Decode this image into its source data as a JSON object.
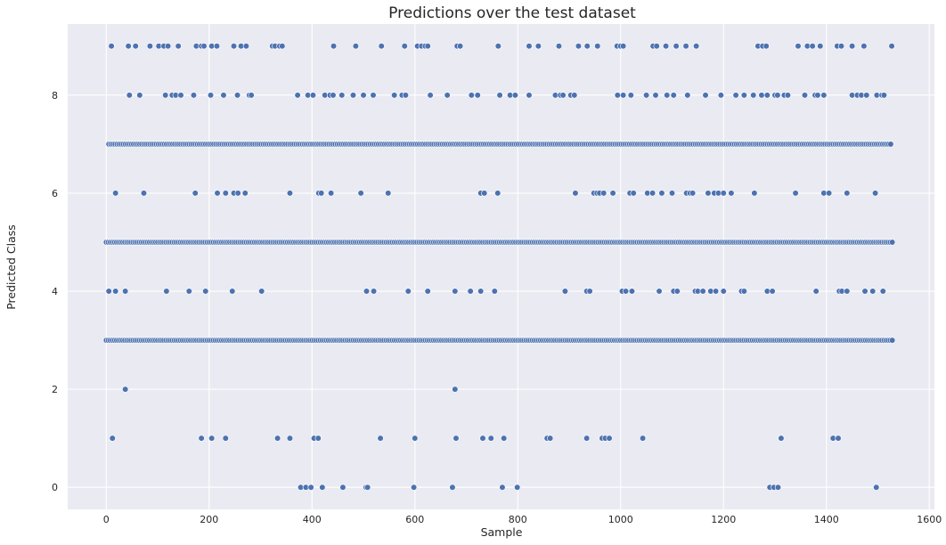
{
  "chart_data": {
    "type": "scatter",
    "title": "Predictions over the test dataset",
    "xlabel": "Sample",
    "ylabel": "Predicted Class",
    "xlim": [
      -75,
      1610
    ],
    "ylim": [
      -0.45,
      9.45
    ],
    "x_ticks": [
      0,
      200,
      400,
      600,
      800,
      1000,
      1200,
      1400,
      1600
    ],
    "y_ticks": [
      0,
      2,
      4,
      6,
      8
    ],
    "grid": true,
    "legend": "none",
    "colors": {
      "plot_background": "#eaeaf2",
      "grid": "#ffffff",
      "point": "#4c72b0",
      "point_edge": "#ffffff"
    },
    "series": [
      {
        "x": [
          378,
          388,
          398,
          420,
          460,
          505,
          508,
          598,
          673,
          770,
          799,
          1290,
          1298,
          1306,
          1497,
          12,
          185,
          205,
          232,
          333,
          357,
          404,
          412,
          533,
          600,
          680,
          732,
          748,
          773,
          857,
          863,
          934,
          964,
          970,
          978,
          1043,
          1312,
          1413,
          1423,
          37,
          678,
          5,
          18,
          37,
          117,
          161,
          193,
          245,
          302,
          506,
          520,
          587,
          625,
          678,
          708,
          728,
          755,
          892,
          934,
          940,
          1003,
          1010,
          1022,
          1075,
          1103,
          1110,
          1145,
          1150,
          1160,
          1175,
          1185,
          1200,
          1235,
          1240,
          1285,
          1295,
          1380,
          1425,
          1430,
          1440,
          1475,
          1490,
          1510,
          18,
          73,
          173,
          216,
          232,
          248,
          256,
          270,
          357,
          413,
          418,
          437,
          495,
          548,
          728,
          735,
          761,
          912,
          948,
          954,
          959,
          967,
          985,
          1018,
          1025,
          1052,
          1062,
          1080,
          1100,
          1128,
          1135,
          1140,
          1170,
          1182,
          1190,
          1200,
          1215,
          1260,
          1340,
          1395,
          1405,
          1440,
          1495,
          45,
          65,
          115,
          128,
          135,
          145,
          170,
          203,
          228,
          255,
          278,
          282,
          372,
          392,
          402,
          425,
          435,
          441,
          458,
          480,
          500,
          519,
          560,
          575,
          582,
          630,
          663,
          710,
          722,
          765,
          785,
          795,
          822,
          873,
          883,
          888,
          903,
          910,
          994,
          1005,
          1020,
          1050,
          1068,
          1090,
          1103,
          1130,
          1165,
          1195,
          1224,
          1240,
          1258,
          1274,
          1285,
          1300,
          1305,
          1318,
          1325,
          1358,
          1378,
          1383,
          1395,
          1450,
          1460,
          1468,
          1478,
          1498,
          1508,
          1512,
          10,
          43,
          57,
          85,
          102,
          112,
          120,
          140,
          175,
          185,
          190,
          205,
          215,
          248,
          262,
          272,
          323,
          328,
          337,
          342,
          442,
          485,
          535,
          580,
          605,
          613,
          620,
          625,
          682,
          688,
          762,
          822,
          840,
          880,
          918,
          935,
          955,
          993,
          1000,
          1005,
          1063,
          1070,
          1088,
          1108,
          1127,
          1147,
          1267,
          1276,
          1283,
          1345,
          1363,
          1373,
          1388,
          1421,
          1429,
          1450,
          1473,
          1527
        ],
        "y": [
          0,
          0,
          0,
          0,
          0,
          0,
          0,
          0,
          0,
          0,
          0,
          0,
          0,
          0,
          0,
          1,
          1,
          1,
          1,
          1,
          1,
          1,
          1,
          1,
          1,
          1,
          1,
          1,
          1,
          1,
          1,
          1,
          1,
          1,
          1,
          1,
          1,
          1,
          1,
          2,
          2,
          4,
          4,
          4,
          4,
          4,
          4,
          4,
          4,
          4,
          4,
          4,
          4,
          4,
          4,
          4,
          4,
          4,
          4,
          4,
          4,
          4,
          4,
          4,
          4,
          4,
          4,
          4,
          4,
          4,
          4,
          4,
          4,
          4,
          4,
          4,
          4,
          4,
          4,
          4,
          4,
          4,
          4,
          6,
          6,
          6,
          6,
          6,
          6,
          6,
          6,
          6,
          6,
          6,
          6,
          6,
          6,
          6,
          6,
          6,
          6,
          6,
          6,
          6,
          6,
          6,
          6,
          6,
          6,
          6,
          6,
          6,
          6,
          6,
          6,
          6,
          6,
          6,
          6,
          6,
          6,
          6,
          6,
          6,
          6,
          6,
          8,
          8,
          8,
          8,
          8,
          8,
          8,
          8,
          8,
          8,
          8,
          8,
          8,
          8,
          8,
          8,
          8,
          8,
          8,
          8,
          8,
          8,
          8,
          8,
          8,
          8,
          8,
          8,
          8,
          8,
          8,
          8,
          8,
          8,
          8,
          8,
          8,
          8,
          8,
          8,
          8,
          8,
          8,
          8,
          8,
          8,
          8,
          8,
          8,
          8,
          8,
          8,
          8,
          8,
          8,
          8,
          8,
          8,
          8,
          8,
          8,
          8,
          8,
          8,
          8,
          8,
          8,
          8,
          9,
          9,
          9,
          9,
          9,
          9,
          9,
          9,
          9,
          9,
          9,
          9,
          9,
          9,
          9,
          9,
          9,
          9,
          9,
          9,
          9,
          9,
          9,
          9,
          9,
          9,
          9,
          9,
          9,
          9,
          9,
          9,
          9,
          9,
          9,
          9,
          9,
          9,
          9,
          9,
          9,
          9,
          9,
          9,
          9,
          9,
          9,
          9,
          9,
          9,
          9,
          9,
          9,
          9,
          9,
          9,
          9,
          9
        ],
        "dense_rows": [
          {
            "y": 3,
            "x_range": [
              0,
              1528
            ]
          },
          {
            "y": 5,
            "x_range": [
              0,
              1528
            ]
          },
          {
            "y": 7,
            "x_range": [
              5,
              1528
            ]
          }
        ]
      }
    ]
  }
}
